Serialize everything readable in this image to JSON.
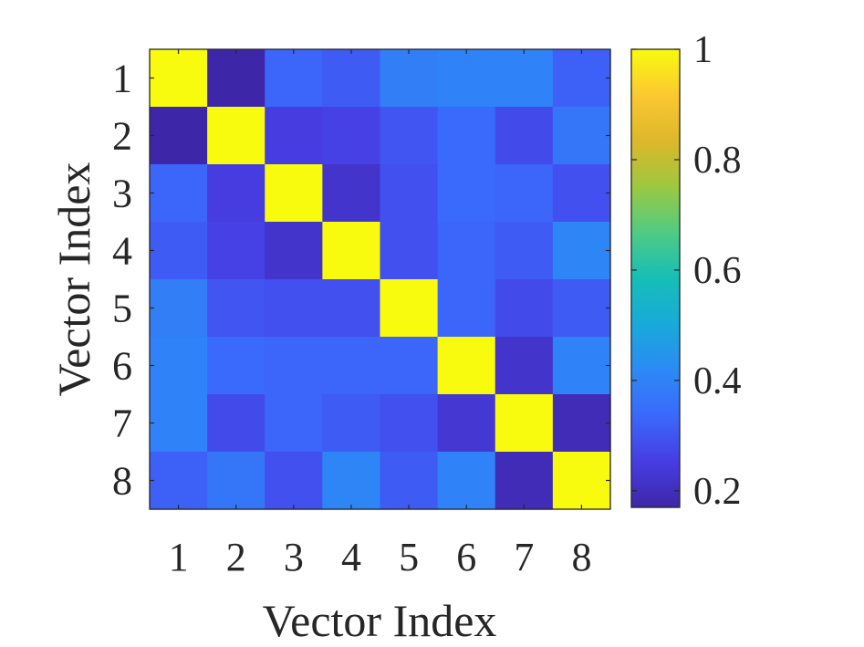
{
  "chart_data": {
    "type": "heatmap",
    "title": "",
    "xlabel": "Vector Index",
    "ylabel": "Vector Index",
    "x_categories": [
      "1",
      "2",
      "3",
      "4",
      "5",
      "6",
      "7",
      "8"
    ],
    "y_categories": [
      "1",
      "2",
      "3",
      "4",
      "5",
      "6",
      "7",
      "8"
    ],
    "values": [
      [
        1.0,
        0.17,
        0.33,
        0.31,
        0.39,
        0.4,
        0.4,
        0.32
      ],
      [
        0.17,
        1.0,
        0.25,
        0.26,
        0.3,
        0.34,
        0.28,
        0.37
      ],
      [
        0.33,
        0.25,
        1.0,
        0.22,
        0.29,
        0.34,
        0.33,
        0.29
      ],
      [
        0.31,
        0.26,
        0.22,
        1.0,
        0.29,
        0.33,
        0.31,
        0.41
      ],
      [
        0.39,
        0.3,
        0.29,
        0.29,
        1.0,
        0.33,
        0.28,
        0.31
      ],
      [
        0.4,
        0.34,
        0.33,
        0.33,
        0.33,
        1.0,
        0.22,
        0.4
      ],
      [
        0.4,
        0.28,
        0.33,
        0.31,
        0.29,
        0.23,
        1.0,
        0.19
      ],
      [
        0.32,
        0.37,
        0.29,
        0.41,
        0.31,
        0.4,
        0.19,
        1.0
      ]
    ],
    "colorbar": {
      "colormap": "parula",
      "range": [
        0.17,
        1.0
      ],
      "ticks": [
        0.2,
        0.4,
        0.6,
        0.8,
        1.0
      ],
      "tick_labels": [
        "0.2",
        "0.4",
        "0.6",
        "0.8",
        "1"
      ]
    },
    "grid": false,
    "legend": "colorbar-right"
  }
}
